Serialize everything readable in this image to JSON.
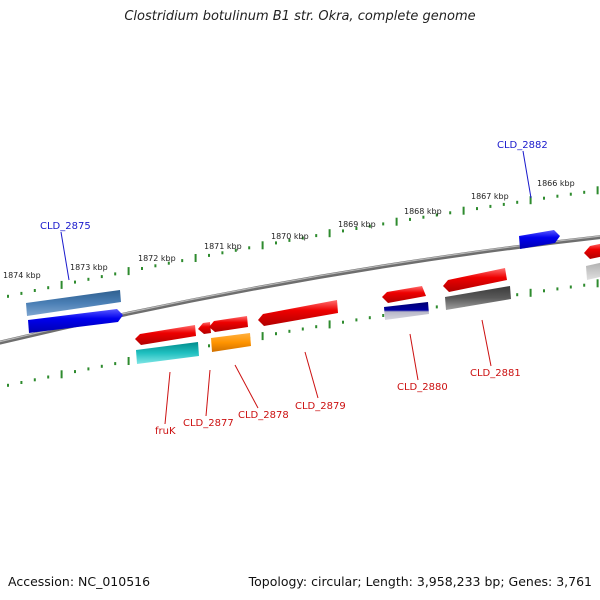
{
  "title": "Clostridium botulinum B1 str. Okra, complete genome",
  "footer": {
    "accession": "Accession: NC_010516",
    "summary": "Topology: circular; Length: 3,958,233 bp; Genes: 3,761"
  },
  "colors": {
    "backbone": "#7a7a7a",
    "ticks": "#2e8b2e",
    "label_forward": "#1a1acc",
    "label_reverse": "#cc1111"
  },
  "ticks": [
    "1874 kbp",
    "1873 kbp",
    "1872 kbp",
    "1871 kbp",
    "1870 kbp",
    "1869 kbp",
    "1868 kbp",
    "1867 kbp",
    "1866 kbp"
  ],
  "gene_labels": [
    "CLD_2875",
    "CLD_2882",
    "fruK",
    "CLD_2877",
    "CLD_2878",
    "CLD_2879",
    "CLD_2880",
    "CLD_2881"
  ]
}
